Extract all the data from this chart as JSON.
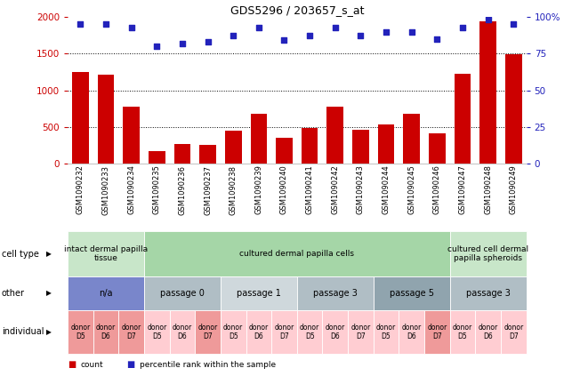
{
  "title": "GDS5296 / 203657_s_at",
  "samples": [
    "GSM1090232",
    "GSM1090233",
    "GSM1090234",
    "GSM1090235",
    "GSM1090236",
    "GSM1090237",
    "GSM1090238",
    "GSM1090239",
    "GSM1090240",
    "GSM1090241",
    "GSM1090242",
    "GSM1090243",
    "GSM1090244",
    "GSM1090245",
    "GSM1090246",
    "GSM1090247",
    "GSM1090248",
    "GSM1090249"
  ],
  "counts": [
    1250,
    1215,
    780,
    165,
    270,
    250,
    445,
    680,
    350,
    490,
    775,
    455,
    530,
    680,
    415,
    1225,
    1940,
    1490
  ],
  "percentiles": [
    95,
    95,
    93,
    80,
    82,
    83,
    87,
    93,
    84,
    87,
    93,
    87,
    90,
    90,
    85,
    93,
    98,
    95
  ],
  "bar_color": "#cc0000",
  "dot_color": "#2222bb",
  "ylim_left": [
    0,
    2000
  ],
  "ylim_right": [
    0,
    100
  ],
  "yticks_left": [
    0,
    500,
    1000,
    1500,
    2000
  ],
  "yticks_right": [
    0,
    25,
    50,
    75,
    100
  ],
  "ytick_labels_right": [
    "0",
    "25",
    "50",
    "75",
    "100%"
  ],
  "grid_values": [
    500,
    1000,
    1500
  ],
  "cell_type_groups": [
    {
      "label": "intact dermal papilla\ntissue",
      "start": 0,
      "end": 3,
      "color": "#c8e6c9"
    },
    {
      "label": "cultured dermal papilla cells",
      "start": 3,
      "end": 15,
      "color": "#a5d6a7"
    },
    {
      "label": "cultured cell dermal\npapilla spheroids",
      "start": 15,
      "end": 18,
      "color": "#c8e6c9"
    }
  ],
  "other_groups": [
    {
      "label": "n/a",
      "start": 0,
      "end": 3,
      "color": "#7986cb"
    },
    {
      "label": "passage 0",
      "start": 3,
      "end": 6,
      "color": "#b0bec5"
    },
    {
      "label": "passage 1",
      "start": 6,
      "end": 9,
      "color": "#cfd8dc"
    },
    {
      "label": "passage 3",
      "start": 9,
      "end": 12,
      "color": "#b0bec5"
    },
    {
      "label": "passage 5",
      "start": 12,
      "end": 15,
      "color": "#90a4ae"
    },
    {
      "label": "passage 3",
      "start": 15,
      "end": 18,
      "color": "#b0bec5"
    }
  ],
  "individual_groups": [
    {
      "label": "donor\nD5",
      "start": 0,
      "end": 1,
      "color": "#ef9a9a"
    },
    {
      "label": "donor\nD6",
      "start": 1,
      "end": 2,
      "color": "#ef9a9a"
    },
    {
      "label": "donor\nD7",
      "start": 2,
      "end": 3,
      "color": "#ef9a9a"
    },
    {
      "label": "donor\nD5",
      "start": 3,
      "end": 4,
      "color": "#ffcdd2"
    },
    {
      "label": "donor\nD6",
      "start": 4,
      "end": 5,
      "color": "#ffcdd2"
    },
    {
      "label": "donor\nD7",
      "start": 5,
      "end": 6,
      "color": "#ef9a9a"
    },
    {
      "label": "donor\nD5",
      "start": 6,
      "end": 7,
      "color": "#ffcdd2"
    },
    {
      "label": "donor\nD6",
      "start": 7,
      "end": 8,
      "color": "#ffcdd2"
    },
    {
      "label": "donor\nD7",
      "start": 8,
      "end": 9,
      "color": "#ffcdd2"
    },
    {
      "label": "donor\nD5",
      "start": 9,
      "end": 10,
      "color": "#ffcdd2"
    },
    {
      "label": "donor\nD6",
      "start": 10,
      "end": 11,
      "color": "#ffcdd2"
    },
    {
      "label": "donor\nD7",
      "start": 11,
      "end": 12,
      "color": "#ffcdd2"
    },
    {
      "label": "donor\nD5",
      "start": 12,
      "end": 13,
      "color": "#ffcdd2"
    },
    {
      "label": "donor\nD6",
      "start": 13,
      "end": 14,
      "color": "#ffcdd2"
    },
    {
      "label": "donor\nD7",
      "start": 14,
      "end": 15,
      "color": "#ef9a9a"
    },
    {
      "label": "donor\nD5",
      "start": 15,
      "end": 16,
      "color": "#ffcdd2"
    },
    {
      "label": "donor\nD6",
      "start": 16,
      "end": 17,
      "color": "#ffcdd2"
    },
    {
      "label": "donor\nD7",
      "start": 17,
      "end": 18,
      "color": "#ffcdd2"
    }
  ],
  "background_color": "#ffffff"
}
